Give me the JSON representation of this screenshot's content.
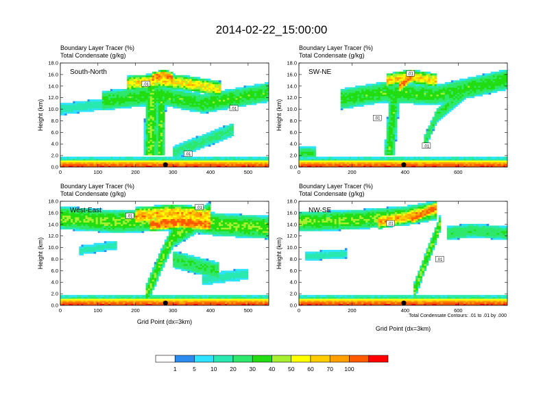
{
  "figure": {
    "title": "2014-02-22_15:00:00",
    "contour_note": "Total Condensate Contours: .01 to .01 by .000",
    "colors": {
      "levels": [
        "#ffffff",
        "#2b8cf0",
        "#2de3ff",
        "#29e8b0",
        "#2ee86b",
        "#22dd11",
        "#a6f030",
        "#ffff00",
        "#ffcc00",
        "#ffa000",
        "#ff5a00",
        "#ff0000"
      ]
    },
    "colorbar": {
      "labels": [
        "1",
        "5",
        "10",
        "20",
        "30",
        "40",
        "50",
        "60",
        "70",
        "100"
      ]
    }
  },
  "chart_data": [
    {
      "type": "heatmap",
      "panel_label": "South-North",
      "header_line1": "Boundary Layer Tracer    (%)",
      "header_line2": "Total Condensate    (g/kg)",
      "ylabel": "Height (km)",
      "xlabel": "",
      "xlim": [
        0,
        555
      ],
      "ylim": [
        0.0,
        18.0
      ],
      "xticks": [
        0,
        100,
        200,
        300,
        400,
        500
      ],
      "yticks": [
        "0.0",
        "2.0",
        "4.0",
        "6.0",
        "8.0",
        "10.0",
        "12.0",
        "14.0",
        "16.0",
        "18.0"
      ],
      "contour_labels": [
        {
          "text": ".01",
          "x": 228,
          "y": 14.4
        },
        {
          "text": ".01",
          "x": 462,
          "y": 10.2
        },
        {
          "text": ".01",
          "x": 340,
          "y": 2.3
        }
      ],
      "surface_marker_x": 280,
      "plumes": [
        {
          "x": [
            110,
            260,
            380,
            555
          ],
          "y": [
            11.5,
            12.5,
            11.0,
            13.0
          ],
          "d": 1.7,
          "v": 25
        },
        {
          "x": [
            180,
            270,
            340,
            430
          ],
          "y": [
            14.5,
            15.0,
            14.5,
            13.5
          ],
          "d": 1.3,
          "v": 50
        },
        {
          "x": [
            245,
            275,
            300
          ],
          "y": [
            15.5,
            16.0,
            15.5
          ],
          "d": 0.9,
          "v": 75
        },
        {
          "x": [
            240,
            245
          ],
          "y": [
            2,
            14
          ],
          "d": 1.0,
          "v": 30,
          "w": 18
        },
        {
          "x": [
            265,
            270
          ],
          "y": [
            2,
            13
          ],
          "d": 1.0,
          "v": 28,
          "w": 12
        },
        {
          "x": [
            0,
            60,
            130
          ],
          "y": [
            10.0,
            10.5,
            11.0
          ],
          "d": 1.0,
          "v": 8
        },
        {
          "x": [
            300,
            460
          ],
          "y": [
            2.5,
            6.5
          ],
          "d": 1.2,
          "v": 12
        },
        {
          "x": [
            0,
            555
          ],
          "y": [
            1.0,
            1.0
          ],
          "d": 0.9,
          "v": 10
        }
      ]
    },
    {
      "type": "heatmap",
      "panel_label": "SW-NE",
      "header_line1": "Boundary Layer Tracer    (%)",
      "header_line2": "Total Condensate    (g/kg)",
      "ylabel": "Height (km)",
      "xlabel": "",
      "xlim": [
        0,
        785
      ],
      "ylim": [
        0.0,
        18.0
      ],
      "xticks": [
        0,
        200,
        400,
        600
      ],
      "yticks": [
        "0.0",
        "2.0",
        "4.0",
        "6.0",
        "8.0",
        "10.0",
        "12.0",
        "14.0",
        "16.0",
        "18.0"
      ],
      "contour_labels": [
        {
          "text": ".01",
          "x": 420,
          "y": 16.2
        },
        {
          "text": ".01",
          "x": 295,
          "y": 8.5
        },
        {
          "text": ".01",
          "x": 480,
          "y": 3.7
        }
      ],
      "surface_marker_x": 395,
      "plumes": [
        {
          "x": [
            160,
            320,
            520,
            785
          ],
          "y": [
            11.8,
            13.0,
            12.5,
            15.2
          ],
          "d": 1.8,
          "v": 25
        },
        {
          "x": [
            330,
            420,
            520
          ],
          "y": [
            15.0,
            15.7,
            15.0
          ],
          "d": 1.2,
          "v": 55
        },
        {
          "x": [
            380,
            430
          ],
          "y": [
            14.0,
            16.0
          ],
          "d": 1.0,
          "v": 75
        },
        {
          "x": [
            340,
            360
          ],
          "y": [
            2,
            12
          ],
          "d": 1.0,
          "v": 25,
          "w": 20
        },
        {
          "x": [
            470,
            520,
            650
          ],
          "y": [
            4,
            9,
            14
          ],
          "d": 1.2,
          "v": 20
        },
        {
          "x": [
            0,
            60
          ],
          "y": [
            2.5,
            2.5
          ],
          "d": 1.0,
          "v": 20
        },
        {
          "x": [
            0,
            785
          ],
          "y": [
            1.0,
            1.0
          ],
          "d": 0.9,
          "v": 10
        }
      ]
    },
    {
      "type": "heatmap",
      "panel_label": "West-East",
      "header_line1": "Boundary Layer Tracer    (%)",
      "header_line2": "Total Condensate    (g/kg)",
      "ylabel": "Height (km)",
      "xlabel": "Grid Point (dx=3km)",
      "xlim": [
        0,
        555
      ],
      "ylim": [
        0.0,
        18.0
      ],
      "xticks": [
        0,
        100,
        200,
        300,
        400,
        500
      ],
      "yticks": [
        "0.0",
        "2.0",
        "4.0",
        "6.0",
        "8.0",
        "10.0",
        "12.0",
        "14.0",
        "16.0",
        "18.0"
      ],
      "contour_labels": [
        {
          "text": ".01",
          "x": 185,
          "y": 15.5
        },
        {
          "text": ".01",
          "x": 370,
          "y": 17.0
        }
      ],
      "surface_marker_x": 280,
      "plumes": [
        {
          "x": [
            0,
            150,
            300,
            420,
            555
          ],
          "y": [
            15.2,
            14.5,
            15.0,
            14.0,
            13.5
          ],
          "d": 2.0,
          "v": 30
        },
        {
          "x": [
            200,
            300,
            400
          ],
          "y": [
            15.5,
            16.0,
            15.5
          ],
          "d": 1.5,
          "v": 60
        },
        {
          "x": [
            240,
            320,
            400
          ],
          "y": [
            14.0,
            14.5,
            14.0
          ],
          "d": 1.2,
          "v": 80
        },
        {
          "x": [
            230,
            270,
            300,
            400
          ],
          "y": [
            2,
            8,
            12,
            16
          ],
          "d": 2.0,
          "v": 28
        },
        {
          "x": [
            300,
            360,
            420
          ],
          "y": [
            8,
            7,
            6
          ],
          "d": 1.5,
          "v": 20
        },
        {
          "x": [
            50,
            150
          ],
          "y": [
            9.5,
            10.5
          ],
          "d": 0.8,
          "v": 8
        },
        {
          "x": [
            380,
            500
          ],
          "y": [
            4.5,
            5.5
          ],
          "d": 1.0,
          "v": 8
        },
        {
          "x": [
            0,
            555
          ],
          "y": [
            1.0,
            1.0
          ],
          "d": 0.9,
          "v": 12
        }
      ]
    },
    {
      "type": "heatmap",
      "panel_label": "NW-SE",
      "header_line1": "Boundary Layer Tracer    (%)",
      "header_line2": "Total Condensate    (g/kg)",
      "ylabel": "Height (km)",
      "xlabel": "Grid Point (dx=3km)",
      "xlim": [
        0,
        785
      ],
      "ylim": [
        0.0,
        18.0
      ],
      "xticks": [
        0,
        200,
        400,
        600
      ],
      "yticks": [
        "0.0",
        "2.0",
        "4.0",
        "6.0",
        "8.0",
        "10.0",
        "12.0",
        "14.0",
        "16.0",
        "18.0"
      ],
      "contour_labels": [
        {
          "text": ".01",
          "x": 345,
          "y": 14.2
        },
        {
          "text": ".01",
          "x": 530,
          "y": 8.0
        }
      ],
      "surface_marker_x": 395,
      "plumes": [
        {
          "x": [
            0,
            200,
            400,
            520
          ],
          "y": [
            14.5,
            14.8,
            15.5,
            16.5
          ],
          "d": 1.7,
          "v": 30
        },
        {
          "x": [
            300,
            420,
            520
          ],
          "y": [
            14.5,
            15.5,
            16.8
          ],
          "d": 1.3,
          "v": 60
        },
        {
          "x": [
            420,
            520
          ],
          "y": [
            15.0,
            17.0
          ],
          "d": 1.0,
          "v": 80
        },
        {
          "x": [
            430,
            480,
            530
          ],
          "y": [
            2,
            8,
            14
          ],
          "d": 1.5,
          "v": 30
        },
        {
          "x": [
            560,
            650,
            785
          ],
          "y": [
            12.5,
            13.0,
            12.5
          ],
          "d": 1.2,
          "v": 18
        },
        {
          "x": [
            20,
            180
          ],
          "y": [
            8.5,
            9.0
          ],
          "d": 0.8,
          "v": 8
        },
        {
          "x": [
            0,
            785
          ],
          "y": [
            1.0,
            1.0
          ],
          "d": 0.9,
          "v": 12
        }
      ]
    }
  ]
}
